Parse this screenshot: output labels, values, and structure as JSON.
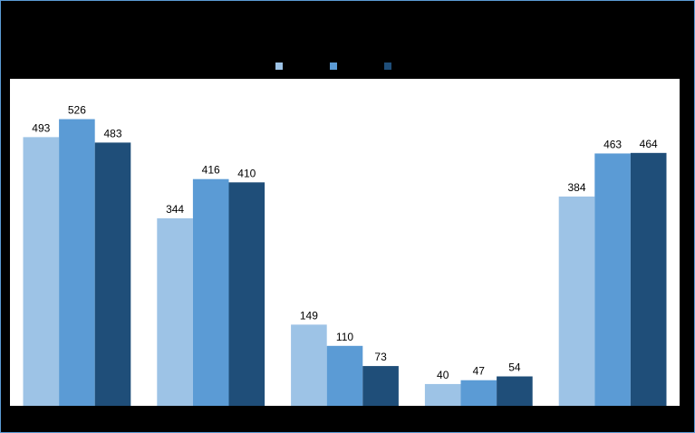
{
  "chart_data": {
    "type": "bar",
    "series": [
      {
        "color": "#9dc3e6",
        "values": [
          493,
          344,
          149,
          40,
          384
        ]
      },
      {
        "color": "#5b9bd5",
        "values": [
          526,
          416,
          110,
          47,
          463
        ]
      },
      {
        "color": "#1f4e79",
        "values": [
          483,
          410,
          73,
          54,
          464
        ]
      }
    ],
    "ylim": [
      0,
      600
    ],
    "legend": "top"
  }
}
